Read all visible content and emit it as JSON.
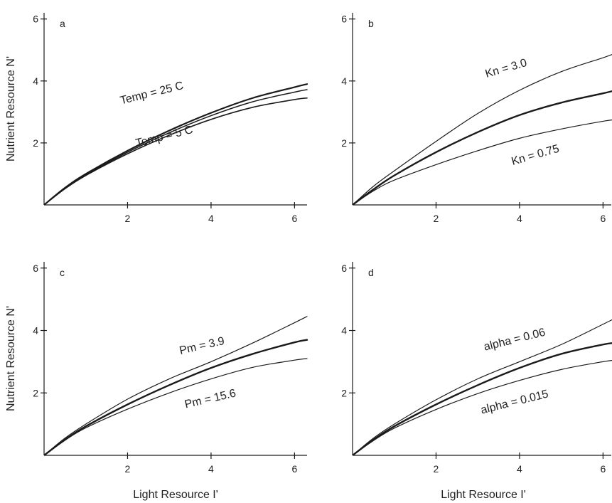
{
  "figure": {
    "ylabel": "Nutrient Resource N'",
    "xlabel": "Light Resource I'"
  },
  "chart_data": [
    {
      "type": "line",
      "panel": "a",
      "xlim": [
        0,
        6.3
      ],
      "ylim": [
        0,
        6.2
      ],
      "x_ticks": [
        "2",
        "4",
        "6"
      ],
      "y_ticks": [
        "2",
        "4",
        "6"
      ],
      "series": [
        {
          "name": "Temp = 25 C",
          "x": [
            0,
            0.5,
            1,
            2,
            3,
            4,
            5,
            6,
            6.3
          ],
          "y": [
            0,
            0.55,
            1.0,
            1.75,
            2.4,
            2.97,
            3.45,
            3.8,
            3.9
          ]
        },
        {
          "x": [
            0,
            0.5,
            1,
            2,
            3,
            4,
            5,
            6,
            6.3
          ],
          "y": [
            0,
            0.53,
            0.97,
            1.7,
            2.33,
            2.88,
            3.33,
            3.64,
            3.72
          ]
        },
        {
          "name": "Temp = 5 C",
          "x": [
            0,
            0.5,
            1,
            2,
            3,
            4,
            5,
            6,
            6.3
          ],
          "y": [
            0,
            0.52,
            0.95,
            1.65,
            2.25,
            2.76,
            3.15,
            3.4,
            3.45
          ]
        }
      ],
      "annotations": [
        {
          "text": "Temp = 25 C",
          "x": 2.6,
          "y": 3.5
        },
        {
          "text": "Temp = 5 C",
          "x": 2.9,
          "y": 2.1
        }
      ]
    },
    {
      "type": "line",
      "panel": "b",
      "xlim": [
        0,
        6.3
      ],
      "ylim": [
        0,
        6.2
      ],
      "x_ticks": [
        "2",
        "4",
        "6"
      ],
      "y_ticks": [
        "2",
        "4",
        "6"
      ],
      "series": [
        {
          "name": "Kn = 3.0",
          "x": [
            0,
            0.5,
            1,
            2,
            3,
            4,
            5,
            6,
            6.3
          ],
          "y": [
            0,
            0.6,
            1.1,
            2.05,
            2.95,
            3.7,
            4.3,
            4.75,
            4.9
          ]
        },
        {
          "x": [
            0,
            0.5,
            1,
            2,
            3,
            4,
            5,
            6,
            6.3
          ],
          "y": [
            0,
            0.5,
            0.95,
            1.7,
            2.35,
            2.9,
            3.3,
            3.6,
            3.7
          ]
        },
        {
          "name": "Kn = 0.75",
          "x": [
            0,
            0.5,
            1,
            2,
            3,
            4,
            5,
            6,
            6.3
          ],
          "y": [
            0,
            0.45,
            0.8,
            1.3,
            1.75,
            2.15,
            2.45,
            2.7,
            2.75
          ]
        }
      ],
      "annotations": [
        {
          "text": "Kn = 3.0",
          "x": 3.7,
          "y": 4.3
        },
        {
          "text": "Kn = 0.75",
          "x": 4.4,
          "y": 1.5
        }
      ]
    },
    {
      "type": "line",
      "panel": "c",
      "xlim": [
        0,
        6.3
      ],
      "ylim": [
        0,
        6.2
      ],
      "x_ticks": [
        "2",
        "4",
        "6"
      ],
      "y_ticks": [
        "2",
        "4",
        "6"
      ],
      "series": [
        {
          "name": "Pm = 3.9",
          "x": [
            0,
            0.5,
            1,
            2,
            3,
            4,
            5,
            6,
            6.3
          ],
          "y": [
            0,
            0.55,
            1.0,
            1.8,
            2.45,
            3.0,
            3.6,
            4.25,
            4.45
          ]
        },
        {
          "x": [
            0,
            0.5,
            1,
            2,
            3,
            4,
            5,
            6,
            6.3
          ],
          "y": [
            0,
            0.5,
            0.93,
            1.63,
            2.25,
            2.8,
            3.25,
            3.62,
            3.7
          ]
        },
        {
          "name": "Pm = 15.6",
          "x": [
            0,
            0.5,
            1,
            2,
            3,
            4,
            5,
            6,
            6.3
          ],
          "y": [
            0,
            0.48,
            0.88,
            1.48,
            2.0,
            2.45,
            2.82,
            3.05,
            3.1
          ]
        }
      ],
      "annotations": [
        {
          "text": "Pm = 3.9",
          "x": 3.8,
          "y": 3.4
        },
        {
          "text": "Pm = 15.6",
          "x": 4.0,
          "y": 1.7
        }
      ]
    },
    {
      "type": "line",
      "panel": "d",
      "xlim": [
        0,
        6.3
      ],
      "ylim": [
        0,
        6.2
      ],
      "x_ticks": [
        "2",
        "4",
        "6"
      ],
      "y_ticks": [
        "2",
        "4",
        "6"
      ],
      "series": [
        {
          "name": "alpha = 0.06",
          "x": [
            0,
            0.5,
            1,
            2,
            3,
            4,
            5,
            6,
            6.3
          ],
          "y": [
            0,
            0.55,
            1.0,
            1.78,
            2.45,
            3.0,
            3.55,
            4.2,
            4.4
          ]
        },
        {
          "x": [
            0,
            0.5,
            1,
            2,
            3,
            4,
            5,
            6,
            6.3
          ],
          "y": [
            0,
            0.5,
            0.93,
            1.63,
            2.25,
            2.8,
            3.25,
            3.55,
            3.6
          ]
        },
        {
          "name": "alpha = 0.015",
          "x": [
            0,
            0.5,
            1,
            2,
            3,
            4,
            5,
            6,
            6.3
          ],
          "y": [
            0,
            0.47,
            0.87,
            1.47,
            1.98,
            2.4,
            2.75,
            3.0,
            3.05
          ]
        }
      ],
      "annotations": [
        {
          "text": "alpha = 0.06",
          "x": 3.9,
          "y": 3.6
        },
        {
          "text": "alpha = 0.015",
          "x": 3.9,
          "y": 1.6
        }
      ]
    }
  ]
}
